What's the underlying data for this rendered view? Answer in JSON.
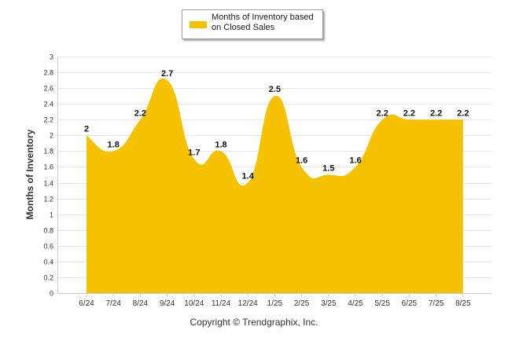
{
  "legend": {
    "label": "Months of Inventory based on Closed Sales",
    "color": "#F5C100"
  },
  "copyright": "Copyright © Trendgraphix, Inc.",
  "chart_data": {
    "type": "area",
    "ylabel": "Months of Inventory",
    "xlabel": "",
    "ylim": [
      0,
      3
    ],
    "yticks": [
      "0",
      "0.2",
      "0.4",
      "0.6",
      "0.8",
      "1",
      "1.2",
      "1.4",
      "1.6",
      "1.8",
      "2",
      "2.2",
      "2.4",
      "2.6",
      "2.8",
      "3"
    ],
    "grid": true,
    "legend_position": "top-center",
    "categories": [
      "6/24",
      "7/24",
      "8/24",
      "9/24",
      "10/24",
      "11/24",
      "12/24",
      "1/25",
      "2/25",
      "3/25",
      "4/25",
      "5/25",
      "6/25",
      "7/25",
      "8/25"
    ],
    "series": [
      {
        "name": "Months of Inventory based on Closed Sales",
        "values": [
          2,
          1.8,
          2.2,
          2.7,
          1.7,
          1.8,
          1.4,
          2.5,
          1.6,
          1.5,
          1.6,
          2.2,
          2.2,
          2.2,
          2.2
        ],
        "data_labels": [
          "2",
          "1.8",
          "2.2",
          "2.7",
          "1.7",
          "1.8",
          "1.4",
          "2.5",
          "1.6",
          "1.5",
          "1.6",
          "2.2",
          "2.2",
          "2.2",
          "2.2"
        ],
        "color": "#F5C100"
      }
    ]
  }
}
